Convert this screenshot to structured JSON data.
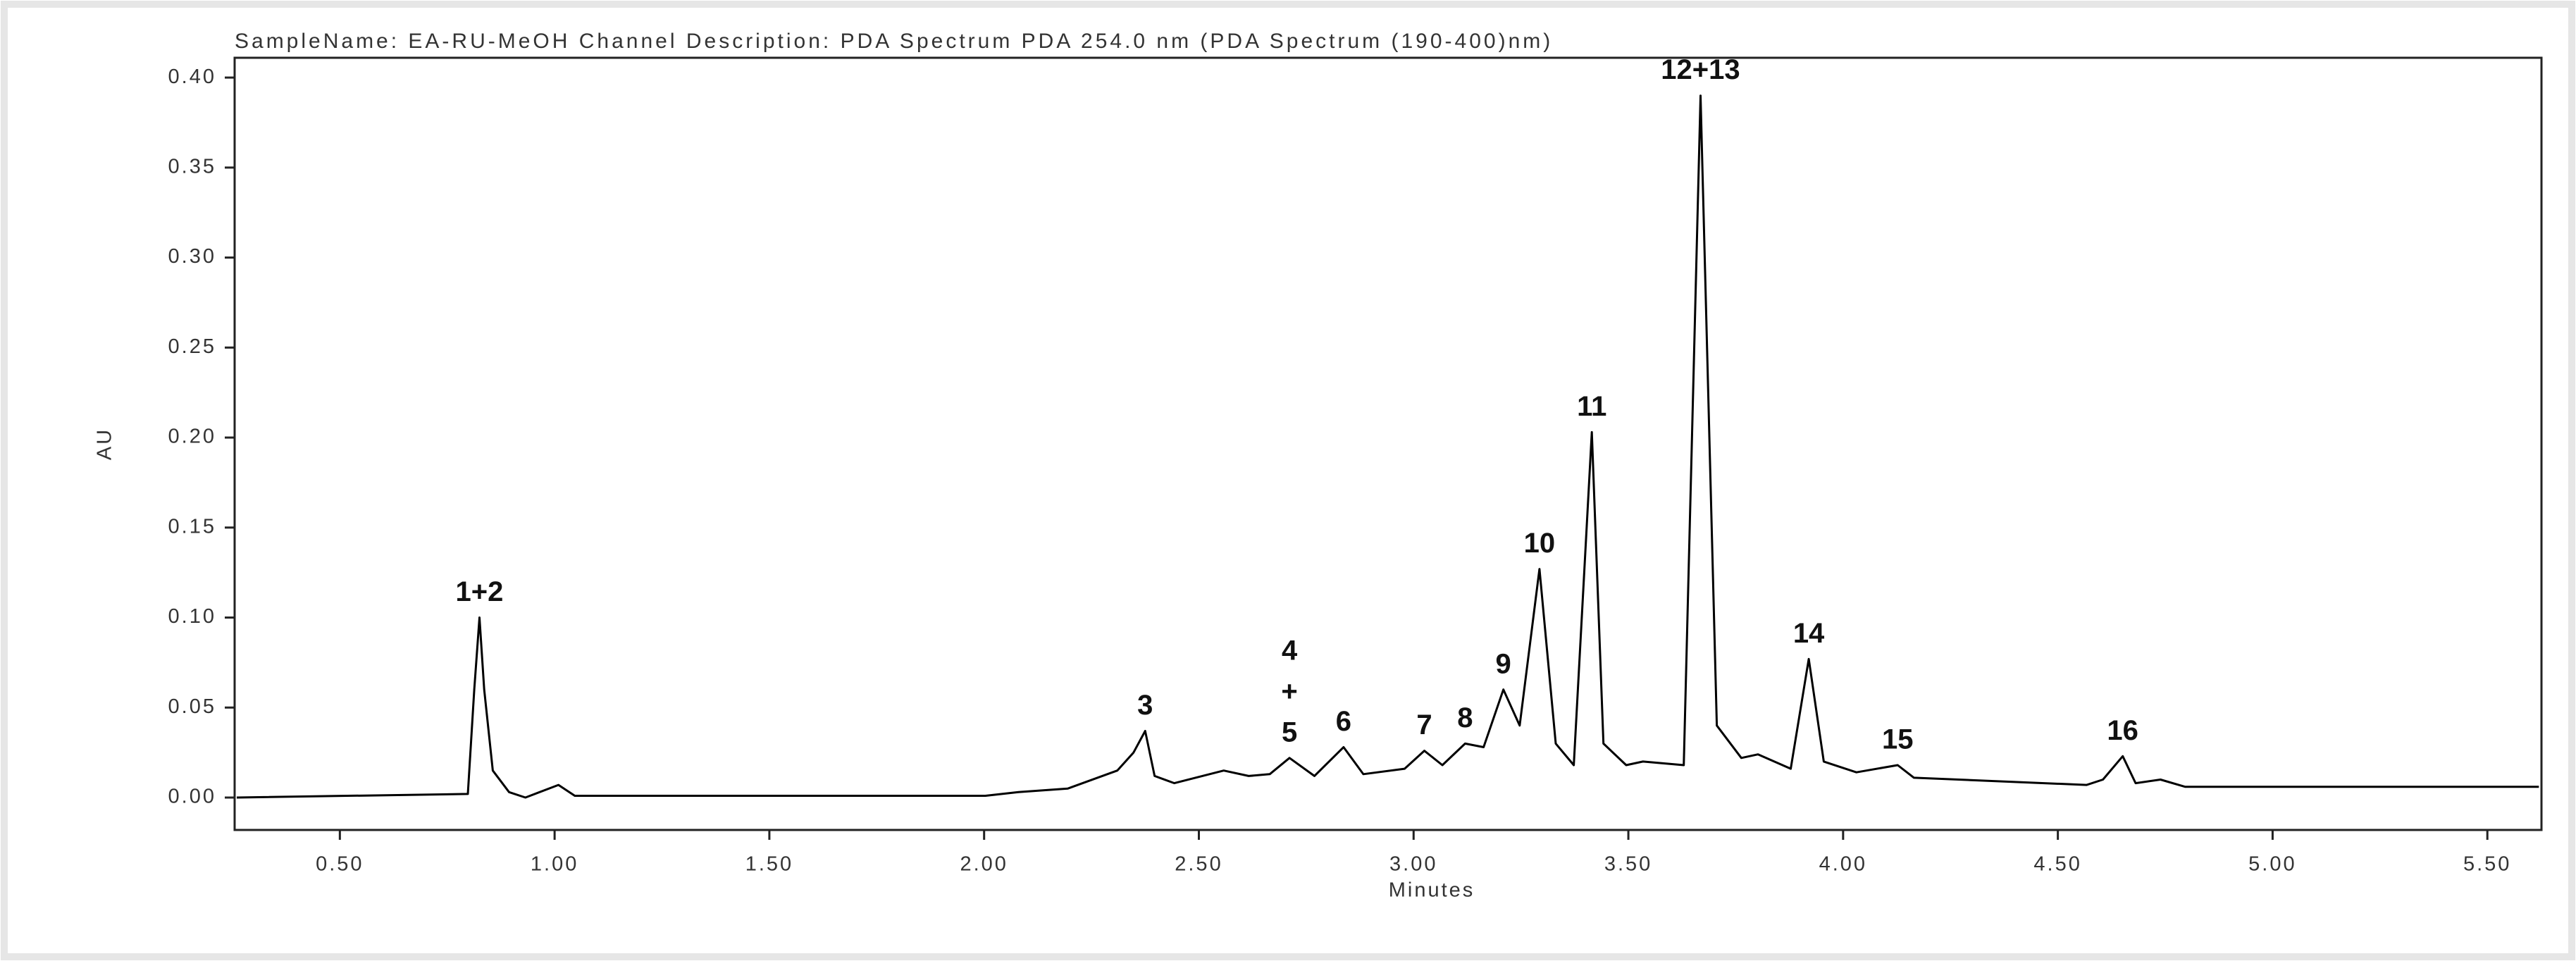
{
  "chart_data": {
    "type": "line",
    "title": "SampleName: EA-RU-MeOH Channel Description: PDA Spectrum PDA 254.0 nm (PDA Spectrum (190-400)nm)",
    "xlabel": "Minutes",
    "ylabel": "AU",
    "color": "#000000",
    "x": [
      0.26,
      0.798,
      0.813,
      0.825,
      0.836,
      0.856,
      0.894,
      0.932,
      1.009,
      1.047,
      2.003,
      2.08,
      2.195,
      2.31,
      2.348,
      2.375,
      2.397,
      2.443,
      2.558,
      2.616,
      2.665,
      2.711,
      2.769,
      2.837,
      2.883,
      2.979,
      3.025,
      3.067,
      3.12,
      3.163,
      3.209,
      3.247,
      3.293,
      3.331,
      3.373,
      3.415,
      3.442,
      3.495,
      3.534,
      3.629,
      3.668,
      3.706,
      3.763,
      3.802,
      3.878,
      3.92,
      3.955,
      4.031,
      4.127,
      4.165,
      4.567,
      4.605,
      4.651,
      4.681,
      4.739,
      4.796,
      5.62
    ],
    "values": [
      0.0,
      0.002,
      0.06,
      0.1,
      0.06,
      0.015,
      0.003,
      0.0,
      0.007,
      0.001,
      0.001,
      0.003,
      0.005,
      0.015,
      0.025,
      0.037,
      0.012,
      0.008,
      0.015,
      0.012,
      0.013,
      0.022,
      0.012,
      0.028,
      0.013,
      0.016,
      0.026,
      0.018,
      0.03,
      0.028,
      0.06,
      0.04,
      0.127,
      0.03,
      0.018,
      0.203,
      0.03,
      0.018,
      0.02,
      0.018,
      0.39,
      0.04,
      0.022,
      0.024,
      0.016,
      0.077,
      0.02,
      0.014,
      0.018,
      0.011,
      0.007,
      0.01,
      0.023,
      0.008,
      0.01,
      0.006,
      0.006
    ],
    "xlim": [
      0.255,
      5.626
    ],
    "ylim": [
      -0.018,
      0.411
    ],
    "xticks": [
      {
        "value": 0.5,
        "label": "0.50"
      },
      {
        "value": 1,
        "label": "1.00"
      },
      {
        "value": 1.5,
        "label": "1.50"
      },
      {
        "value": 2,
        "label": "2.00"
      },
      {
        "value": 2.5,
        "label": "2.50"
      },
      {
        "value": 3,
        "label": "3.00"
      },
      {
        "value": 3.5,
        "label": "3.50"
      },
      {
        "value": 4,
        "label": "4.00"
      },
      {
        "value": 4.5,
        "label": "4.50"
      },
      {
        "value": 5,
        "label": "5.00"
      },
      {
        "value": 5.5,
        "label": "5.50"
      }
    ],
    "yticks": [
      {
        "value": 0,
        "label": "0.00"
      },
      {
        "value": 0.05,
        "label": "0.05"
      },
      {
        "value": 0.1,
        "label": "0.10"
      },
      {
        "value": 0.15,
        "label": "0.15"
      },
      {
        "value": 0.2,
        "label": "0.20"
      },
      {
        "value": 0.25,
        "label": "0.25"
      },
      {
        "value": 0.3,
        "label": "0.30"
      },
      {
        "value": 0.35,
        "label": "0.35"
      },
      {
        "value": 0.4,
        "label": "0.40"
      }
    ],
    "grid": false,
    "annotations": [
      {
        "lines": [
          "1+2"
        ],
        "x": 0.825,
        "y": 0.1
      },
      {
        "lines": [
          "3"
        ],
        "x": 2.375,
        "y": 0.037
      },
      {
        "lines": [
          "4",
          "+",
          "5"
        ],
        "x": 2.711,
        "y": 0.022
      },
      {
        "lines": [
          "6"
        ],
        "x": 2.837,
        "y": 0.028
      },
      {
        "lines": [
          "7"
        ],
        "x": 3.025,
        "y": 0.026
      },
      {
        "lines": [
          "8"
        ],
        "x": 3.12,
        "y": 0.03
      },
      {
        "lines": [
          "9"
        ],
        "x": 3.209,
        "y": 0.06
      },
      {
        "lines": [
          "10"
        ],
        "x": 3.293,
        "y": 0.127
      },
      {
        "lines": [
          "11"
        ],
        "x": 3.415,
        "y": 0.203
      },
      {
        "lines": [
          "12+13"
        ],
        "x": 3.668,
        "y": 0.39
      },
      {
        "lines": [
          "14"
        ],
        "x": 3.92,
        "y": 0.077
      },
      {
        "lines": [
          "15"
        ],
        "x": 4.127,
        "y": 0.018
      },
      {
        "lines": [
          "16"
        ],
        "x": 4.651,
        "y": 0.023
      }
    ]
  }
}
